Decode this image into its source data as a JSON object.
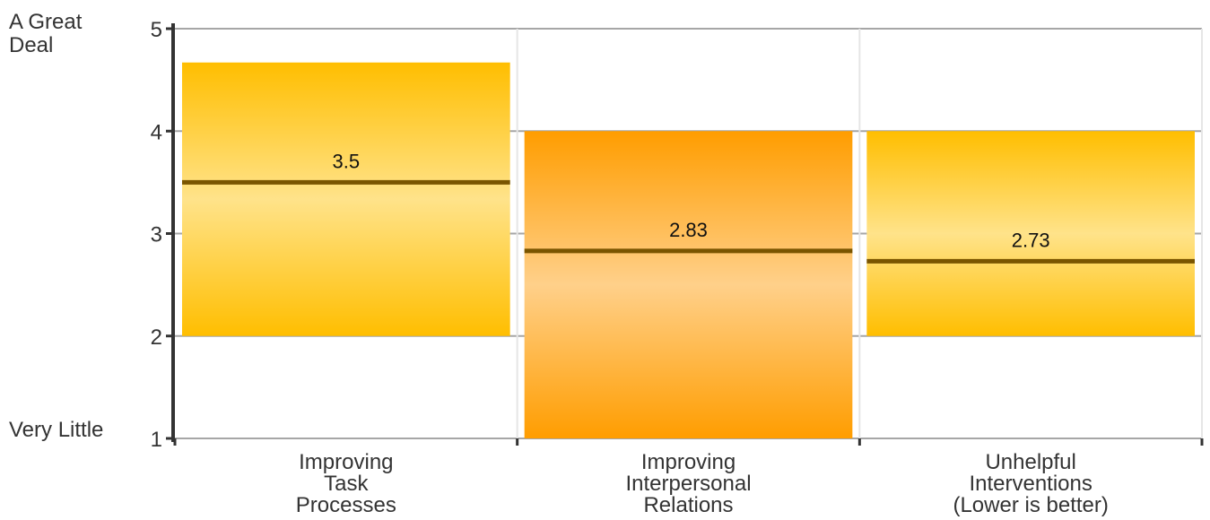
{
  "chart_data": {
    "type": "bar",
    "categories": [
      [
        "Improving",
        "Task",
        "Processes"
      ],
      [
        "Improving",
        "Interpersonal",
        "Relations"
      ],
      [
        "Unhelpful",
        "Interventions",
        "(Lower is better)"
      ]
    ],
    "ranges": [
      {
        "low": 2,
        "high": 4.67,
        "mean": 3.5,
        "label": "3.5"
      },
      {
        "low": 1,
        "high": 4,
        "mean": 2.83,
        "label": "2.83"
      },
      {
        "low": 2,
        "high": 4,
        "mean": 2.73,
        "label": "2.73"
      }
    ],
    "ylim": [
      1,
      5
    ],
    "yticks": [
      1,
      2,
      3,
      4,
      5
    ],
    "ylabel_top": "A Great\nDeal",
    "ylabel_bottom": "Very Little",
    "grid": true,
    "colors": {
      "bar_gold_edge": "#FFBE00",
      "bar_gold_mid": "#FFE38A",
      "bar_orange_edge": "#FF9D00",
      "bar_orange_mid": "#FFD08A",
      "mean_line": "#7A5500",
      "grid": "#A6A6A6",
      "axis": "#333333"
    }
  }
}
